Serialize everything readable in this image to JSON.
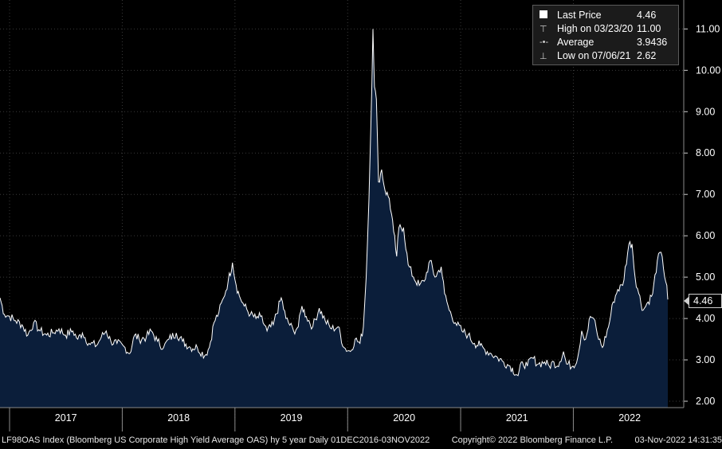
{
  "legend": {
    "last_label": "Last Price",
    "last_value": "4.46",
    "high_label": "High on 03/23/20",
    "high_value": "11.00",
    "avg_label": "Average",
    "avg_value": "3.9436",
    "low_label": "Low on 07/06/21",
    "low_value": "2.62"
  },
  "last_tag": "4.46",
  "footer": {
    "description": "LF98OAS Index (Bloomberg US Corporate High Yield Average OAS) hy 5 year  Daily 01DEC2016-03NOV2022",
    "copyright": "Copyright© 2022 Bloomberg Finance L.P.",
    "timestamp": "03-Nov-2022 14:31:35"
  },
  "colors": {
    "area_fill": "#0b1e3a",
    "line": "#ffffff",
    "grid": "#3a3a3a",
    "background": "#000000"
  },
  "chart_data": {
    "type": "area",
    "x_ticks": [
      "2017",
      "2018",
      "2019",
      "2020",
      "2021",
      "2022"
    ],
    "y_ticks": [
      "2.00",
      "3.00",
      "4.00",
      "5.00",
      "6.00",
      "7.00",
      "8.00",
      "9.00",
      "10.00",
      "11.00"
    ],
    "ylim": [
      2,
      11.7
    ],
    "xlim": [
      "2016-12-01",
      "2022-11-03"
    ],
    "grid": true,
    "series": [
      {
        "points": [
          [
            "2016-12-01",
            4.5
          ],
          [
            "2016-12-15",
            4.1
          ],
          [
            "2017-01-01",
            4.05
          ],
          [
            "2017-01-20",
            3.95
          ],
          [
            "2017-02-10",
            3.85
          ],
          [
            "2017-03-01",
            3.6
          ],
          [
            "2017-03-20",
            3.9
          ],
          [
            "2017-04-10",
            3.7
          ],
          [
            "2017-05-01",
            3.6
          ],
          [
            "2017-05-20",
            3.65
          ],
          [
            "2017-06-10",
            3.75
          ],
          [
            "2017-07-01",
            3.6
          ],
          [
            "2017-07-25",
            3.7
          ],
          [
            "2017-08-10",
            3.5
          ],
          [
            "2017-08-25",
            3.65
          ],
          [
            "2017-09-15",
            3.4
          ],
          [
            "2017-10-10",
            3.35
          ],
          [
            "2017-10-25",
            3.55
          ],
          [
            "2017-11-10",
            3.7
          ],
          [
            "2017-11-25",
            3.45
          ],
          [
            "2017-12-15",
            3.4
          ],
          [
            "2018-01-10",
            3.3
          ],
          [
            "2018-01-25",
            3.15
          ],
          [
            "2018-02-10",
            3.6
          ],
          [
            "2018-02-25",
            3.5
          ],
          [
            "2018-03-20",
            3.55
          ],
          [
            "2018-04-05",
            3.7
          ],
          [
            "2018-04-25",
            3.45
          ],
          [
            "2018-05-15",
            3.3
          ],
          [
            "2018-06-01",
            3.5
          ],
          [
            "2018-06-25",
            3.65
          ],
          [
            "2018-07-15",
            3.45
          ],
          [
            "2018-08-10",
            3.3
          ],
          [
            "2018-09-01",
            3.3
          ],
          [
            "2018-09-25",
            3.1
          ],
          [
            "2018-10-10",
            3.3
          ],
          [
            "2018-10-25",
            3.9
          ],
          [
            "2018-11-10",
            4.15
          ],
          [
            "2018-11-25",
            4.5
          ],
          [
            "2018-12-10",
            4.9
          ],
          [
            "2018-12-24",
            5.35
          ],
          [
            "2019-01-05",
            4.8
          ],
          [
            "2019-01-15",
            4.55
          ],
          [
            "2019-01-31",
            4.3
          ],
          [
            "2019-02-20",
            4.1
          ],
          [
            "2019-03-10",
            4.0
          ],
          [
            "2019-03-25",
            4.05
          ],
          [
            "2019-04-15",
            3.7
          ],
          [
            "2019-05-05",
            3.85
          ],
          [
            "2019-05-31",
            4.5
          ],
          [
            "2019-06-15",
            4.0
          ],
          [
            "2019-07-10",
            3.7
          ],
          [
            "2019-07-25",
            3.8
          ],
          [
            "2019-08-06",
            4.3
          ],
          [
            "2019-08-20",
            4.05
          ],
          [
            "2019-09-10",
            3.8
          ],
          [
            "2019-10-01",
            4.25
          ],
          [
            "2019-10-20",
            3.95
          ],
          [
            "2019-11-10",
            3.75
          ],
          [
            "2019-12-01",
            3.8
          ],
          [
            "2019-12-20",
            3.3
          ],
          [
            "2020-01-10",
            3.2
          ],
          [
            "2020-01-25",
            3.5
          ],
          [
            "2020-02-10",
            3.4
          ],
          [
            "2020-02-21",
            3.8
          ],
          [
            "2020-03-01",
            5.0
          ],
          [
            "2020-03-10",
            6.9
          ],
          [
            "2020-03-16",
            8.6
          ],
          [
            "2020-03-23",
            11.0
          ],
          [
            "2020-03-28",
            9.6
          ],
          [
            "2020-04-03",
            9.3
          ],
          [
            "2020-04-10",
            7.3
          ],
          [
            "2020-04-20",
            7.6
          ],
          [
            "2020-05-01",
            7.1
          ],
          [
            "2020-05-15",
            6.9
          ],
          [
            "2020-05-29",
            6.1
          ],
          [
            "2020-06-08",
            5.5
          ],
          [
            "2020-06-15",
            6.2
          ],
          [
            "2020-06-30",
            6.2
          ],
          [
            "2020-07-15",
            5.3
          ],
          [
            "2020-08-01",
            5.0
          ],
          [
            "2020-08-20",
            4.8
          ],
          [
            "2020-09-05",
            4.9
          ],
          [
            "2020-09-24",
            5.4
          ],
          [
            "2020-10-10",
            5.0
          ],
          [
            "2020-10-30",
            5.25
          ],
          [
            "2020-11-10",
            4.6
          ],
          [
            "2020-11-25",
            4.2
          ],
          [
            "2020-12-15",
            3.9
          ],
          [
            "2021-01-05",
            3.7
          ],
          [
            "2021-01-25",
            3.6
          ],
          [
            "2021-02-15",
            3.4
          ],
          [
            "2021-03-05",
            3.35
          ],
          [
            "2021-03-20",
            3.25
          ],
          [
            "2021-04-10",
            3.15
          ],
          [
            "2021-05-01",
            3.05
          ],
          [
            "2021-05-20",
            2.95
          ],
          [
            "2021-06-10",
            2.85
          ],
          [
            "2021-07-06",
            2.62
          ],
          [
            "2021-07-20",
            2.95
          ],
          [
            "2021-08-05",
            2.85
          ],
          [
            "2021-08-20",
            3.05
          ],
          [
            "2021-09-10",
            2.9
          ],
          [
            "2021-09-30",
            2.95
          ],
          [
            "2021-10-15",
            2.85
          ],
          [
            "2021-10-30",
            2.95
          ],
          [
            "2021-11-10",
            2.85
          ],
          [
            "2021-11-30",
            3.2
          ],
          [
            "2021-12-10",
            2.9
          ],
          [
            "2021-12-31",
            2.85
          ],
          [
            "2022-01-15",
            3.05
          ],
          [
            "2022-01-28",
            3.7
          ],
          [
            "2022-02-10",
            3.5
          ],
          [
            "2022-02-25",
            4.05
          ],
          [
            "2022-03-08",
            4.0
          ],
          [
            "2022-03-20",
            3.6
          ],
          [
            "2022-04-05",
            3.3
          ],
          [
            "2022-04-25",
            3.8
          ],
          [
            "2022-05-10",
            4.4
          ],
          [
            "2022-05-25",
            4.7
          ],
          [
            "2022-06-10",
            4.8
          ],
          [
            "2022-06-30",
            5.8
          ],
          [
            "2022-07-10",
            5.8
          ],
          [
            "2022-07-20",
            5.0
          ],
          [
            "2022-08-01",
            4.6
          ],
          [
            "2022-08-15",
            4.2
          ],
          [
            "2022-08-31",
            4.4
          ],
          [
            "2022-09-15",
            4.6
          ],
          [
            "2022-09-30",
            5.4
          ],
          [
            "2022-10-12",
            5.6
          ],
          [
            "2022-10-20",
            5.2
          ],
          [
            "2022-10-31",
            4.8
          ],
          [
            "2022-11-03",
            4.46
          ]
        ]
      }
    ]
  }
}
